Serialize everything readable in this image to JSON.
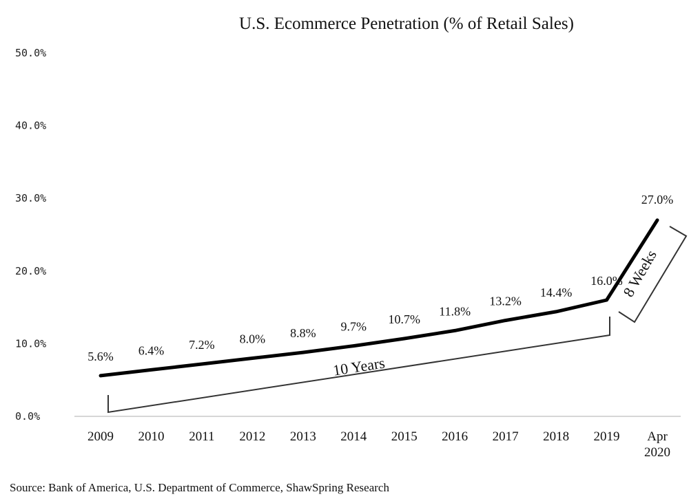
{
  "chart_data": {
    "type": "line",
    "title": "U.S. Ecommerce Penetration (% of Retail Sales)",
    "xlabel": "",
    "ylabel": "",
    "ylim": [
      0,
      50
    ],
    "y_ticks": [
      "0.0%",
      "10.0%",
      "20.0%",
      "30.0%",
      "40.0%",
      "50.0%"
    ],
    "grid": false,
    "categories": [
      {
        "line1": "2009",
        "line2": ""
      },
      {
        "line1": "2010",
        "line2": ""
      },
      {
        "line1": "2011",
        "line2": ""
      },
      {
        "line1": "2012",
        "line2": ""
      },
      {
        "line1": "2013",
        "line2": ""
      },
      {
        "line1": "2014",
        "line2": ""
      },
      {
        "line1": "2015",
        "line2": ""
      },
      {
        "line1": "2016",
        "line2": ""
      },
      {
        "line1": "2017",
        "line2": ""
      },
      {
        "line1": "2018",
        "line2": ""
      },
      {
        "line1": "2019",
        "line2": ""
      },
      {
        "line1": "Apr",
        "line2": "2020"
      }
    ],
    "values": [
      5.6,
      6.4,
      7.2,
      8.0,
      8.8,
      9.7,
      10.7,
      11.8,
      13.2,
      14.4,
      16.0,
      27.0
    ],
    "data_labels": [
      "5.6%",
      "6.4%",
      "7.2%",
      "8.0%",
      "8.8%",
      "9.7%",
      "10.7%",
      "11.8%",
      "13.2%",
      "14.4%",
      "16.0%",
      "27.0%"
    ],
    "annotations": {
      "ten_years": "10 Years",
      "eight_weeks": "8 Weeks"
    },
    "source": "Source: Bank of America, U.S. Department of Commerce, ShawSpring Research"
  }
}
